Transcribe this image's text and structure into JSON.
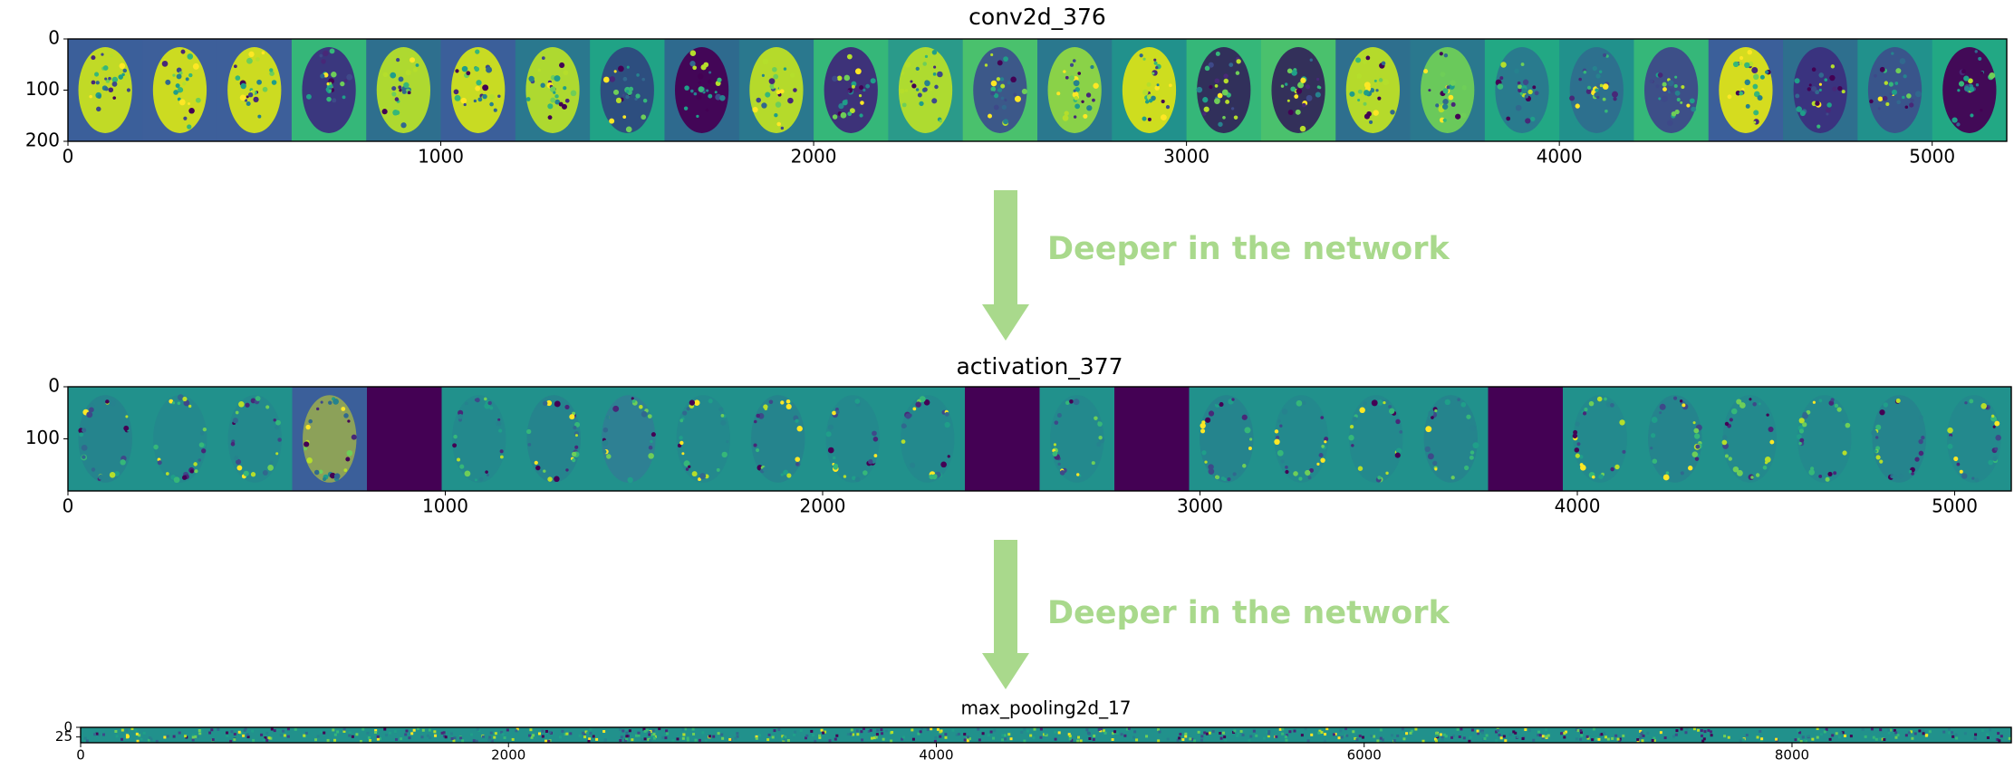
{
  "panels": [
    {
      "title": "conv2d_376",
      "xlim": [
        0,
        5200
      ],
      "ylim": [
        0,
        200
      ],
      "xticks": [
        0,
        1000,
        2000,
        3000,
        4000,
        5000
      ],
      "yticks": [
        0,
        100,
        200
      ]
    },
    {
      "title": "activation_377",
      "xlim": [
        0,
        5150
      ],
      "ylim": [
        0,
        200
      ],
      "xticks": [
        0,
        1000,
        2000,
        3000,
        4000,
        5000
      ],
      "yticks": [
        0,
        100
      ]
    },
    {
      "title": "max_pooling2d_17",
      "xlim": [
        0,
        9025
      ],
      "ylim": [
        0,
        40
      ],
      "xticks": [
        0,
        2000,
        4000,
        6000,
        8000
      ],
      "yticks": [
        0,
        25
      ]
    }
  ],
  "arrows": [
    "Deeper in the network",
    "Deeper in the network"
  ]
}
